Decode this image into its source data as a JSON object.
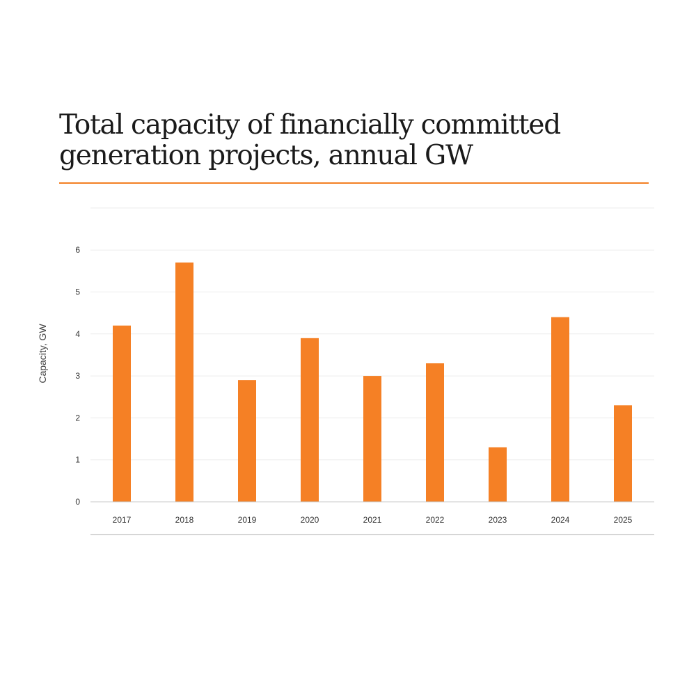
{
  "title": "Total capacity of financially committed generation projects, annual GW",
  "colors": {
    "accent": "#f37f23",
    "bar": "#f58025",
    "grid": "#ececec",
    "baseline": "#c8c8c8"
  },
  "chart_data": {
    "type": "bar",
    "title": "Total capacity of financially committed generation projects, annual GW",
    "xlabel": "",
    "ylabel": "Capacity, GW",
    "categories": [
      "2017",
      "2018",
      "2019",
      "2020",
      "2021",
      "2022",
      "2023",
      "2024",
      "2025"
    ],
    "values": [
      4.2,
      5.7,
      2.9,
      3.9,
      3.0,
      3.3,
      1.3,
      4.4,
      2.3
    ],
    "ylim": [
      0,
      7
    ],
    "yticks": [
      "0",
      "1",
      "2",
      "3",
      "4",
      "5",
      "6"
    ],
    "grid": true,
    "legend": "none"
  }
}
